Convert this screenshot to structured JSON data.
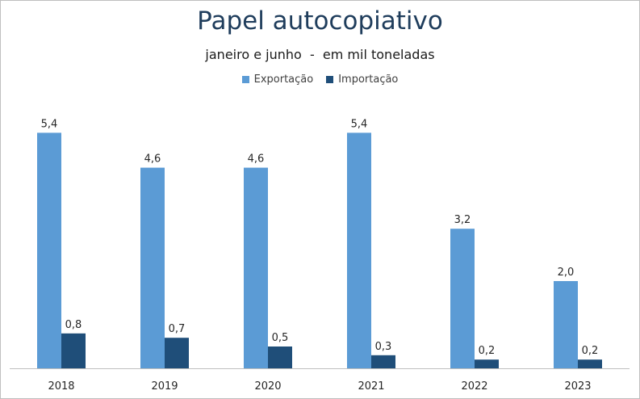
{
  "colors": {
    "exportacao": "#5b9bd5",
    "importacao": "#1f4e79",
    "title": "#1f3d5c",
    "axis": "#bfbfbf"
  },
  "chart_data": {
    "type": "bar",
    "title": "Papel autocopiativo",
    "subtitle": "janeiro e junho  -  em mil toneladas",
    "categories": [
      "2018",
      "2019",
      "2020",
      "2021",
      "2022",
      "2023"
    ],
    "series": [
      {
        "name": "Exportação",
        "values": [
          5.4,
          4.6,
          4.6,
          5.4,
          3.2,
          2.0
        ],
        "labels": [
          "5,4",
          "4,6",
          "4,6",
          "5,4",
          "3,2",
          "2,0"
        ]
      },
      {
        "name": "Importação",
        "values": [
          0.8,
          0.7,
          0.5,
          0.3,
          0.2,
          0.2
        ],
        "labels": [
          "0,8",
          "0,7",
          "0,5",
          "0,3",
          "0,2",
          "0,2"
        ]
      }
    ],
    "ylim": [
      0,
      5.5
    ],
    "xlabel": "",
    "ylabel": "",
    "grid": false,
    "legend": "top-center"
  }
}
